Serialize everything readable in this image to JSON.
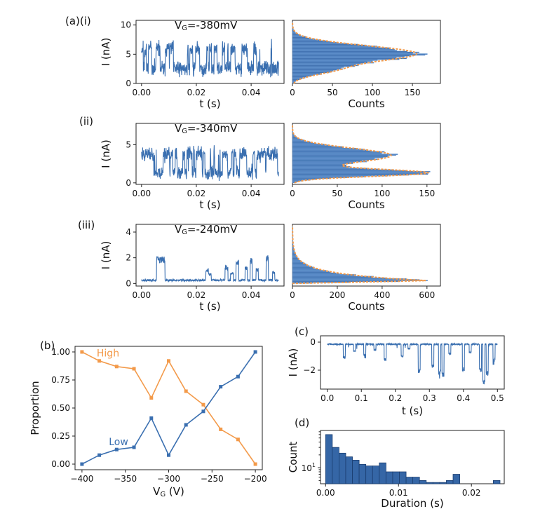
{
  "panel_labels": {
    "a": "(a)(i)",
    "a2": "(ii)",
    "a3": "(iii)",
    "b": "(b)",
    "c": "(c)",
    "d": "(d)"
  },
  "colors": {
    "blue": "#3a6fb0",
    "orange": "#f39a4a",
    "fill": "#3566a6"
  },
  "chart_data": [
    {
      "id": "a_i_trace",
      "type": "line",
      "annotation": {
        "prefix": "V",
        "sub": "G",
        "suffix": "=-380mV"
      },
      "xlabel": "t (s)",
      "ylabel": "I (nA)",
      "xlim": [
        -0.002,
        0.052
      ],
      "ylim": [
        0,
        10.8
      ],
      "xticks": [
        0,
        0.02,
        0.04
      ],
      "xtick_labels": [
        "0.00",
        "0.02",
        "0.04"
      ],
      "yticks": [
        0,
        5,
        10
      ],
      "ytick_labels": [
        "0",
        "5",
        "10"
      ],
      "trace": {
        "mode": "two-level",
        "low": 2.5,
        "high": 6.0,
        "noise": 1.3,
        "seed": 11,
        "min": 0.5,
        "max": 9.8
      }
    },
    {
      "id": "a_i_hist",
      "type": "bar",
      "xlabel": "Counts",
      "xlim": [
        0,
        185
      ],
      "ylim": [
        0,
        10.8
      ],
      "xticks": [
        0,
        50,
        100,
        150
      ],
      "xtick_labels": [
        "0",
        "50",
        "100",
        "150"
      ],
      "profile": {
        "centers": [
          5.1,
          2.3
        ],
        "widths": [
          1.35,
          0.9
        ],
        "amps": [
          155,
          40
        ],
        "top": 10.5
      }
    },
    {
      "id": "a_ii_trace",
      "type": "line",
      "annotation": {
        "prefix": "V",
        "sub": "G",
        "suffix": "=-340mV"
      },
      "xlabel": "t (s)",
      "ylabel": "I (nA)",
      "xlim": [
        -0.002,
        0.052
      ],
      "ylim": [
        -0.2,
        7.8
      ],
      "xticks": [
        0,
        0.02,
        0.04
      ],
      "xtick_labels": [
        "0.00",
        "0.02",
        "0.04"
      ],
      "yticks": [
        0,
        5
      ],
      "ytick_labels": [
        "0",
        "5"
      ],
      "trace": {
        "mode": "two-level",
        "low": 1.3,
        "high": 3.8,
        "noise": 0.9,
        "seed": 23,
        "min": 0.1,
        "max": 6.6
      }
    },
    {
      "id": "a_ii_hist",
      "type": "bar",
      "xlabel": "Counts",
      "xlim": [
        0,
        165
      ],
      "ylim": [
        -0.2,
        7.8
      ],
      "xticks": [
        0,
        50,
        100,
        150
      ],
      "xtick_labels": [
        "0",
        "50",
        "100",
        "150"
      ],
      "profile": {
        "centers": [
          3.6,
          1.3
        ],
        "widths": [
          0.95,
          0.45
        ],
        "amps": [
          110,
          145
        ],
        "top": 7.6
      }
    },
    {
      "id": "a_iii_trace",
      "type": "line",
      "annotation": {
        "prefix": "V",
        "sub": "G",
        "suffix": "=-240mV"
      },
      "xlabel": "t (s)",
      "ylabel": "I (nA)",
      "xlim": [
        -0.002,
        0.052
      ],
      "ylim": [
        -0.2,
        4.6
      ],
      "xticks": [
        0,
        0.02,
        0.04
      ],
      "xtick_labels": [
        "0.00",
        "0.02",
        "0.04"
      ],
      "yticks": [
        0,
        2,
        4
      ],
      "ytick_labels": [
        "0",
        "2",
        "4"
      ],
      "trace": {
        "mode": "spiky",
        "base": 0.25,
        "noise": 0.15,
        "seed": 37,
        "spikes": [
          [
            0.0055,
            0.0085,
            2.1
          ],
          [
            0.0235,
            0.0245,
            1.2
          ],
          [
            0.0245,
            0.0255,
            0.8
          ],
          [
            0.0305,
            0.0315,
            1.4
          ],
          [
            0.0325,
            0.0335,
            0.9
          ],
          [
            0.0345,
            0.0355,
            1.9
          ],
          [
            0.0378,
            0.0386,
            1.4
          ],
          [
            0.0396,
            0.0404,
            2.0
          ],
          [
            0.0418,
            0.0426,
            1.2
          ],
          [
            0.0455,
            0.0463,
            2.2
          ],
          [
            0.0478,
            0.0486,
            1.0
          ]
        ]
      }
    },
    {
      "id": "a_iii_hist",
      "type": "bar",
      "xlabel": "Counts",
      "xlim": [
        0,
        660
      ],
      "ylim": [
        -0.2,
        4.6
      ],
      "xticks": [
        0,
        200,
        400,
        600
      ],
      "xtick_labels": [
        "0",
        "200",
        "400",
        "600"
      ],
      "profile": {
        "mode": "decay",
        "peak": 600,
        "center": 0.22,
        "scale": 0.55,
        "top": 4.5
      }
    },
    {
      "id": "b",
      "type": "line",
      "xlabel": {
        "prefix": "V",
        "sub": "G",
        "suffix": " (V)"
      },
      "ylabel": "Proportion",
      "xlim": [
        -408,
        -192
      ],
      "ylim": [
        -0.05,
        1.05
      ],
      "xticks": [
        -400,
        -350,
        -300,
        -250,
        -200
      ],
      "xtick_labels": [
        "−400",
        "−350",
        "−300",
        "−250",
        "−200"
      ],
      "yticks": [
        0,
        0.25,
        0.5,
        0.75,
        1.0
      ],
      "ytick_labels": [
        "0.00",
        "0.25",
        "0.50",
        "0.75",
        "1.00"
      ],
      "x": [
        -400,
        -380,
        -360,
        -340,
        -320,
        -300,
        -280,
        -260,
        -240,
        -220,
        -200
      ],
      "series": [
        {
          "name": "High",
          "values": [
            1.0,
            0.92,
            0.87,
            0.85,
            0.59,
            0.92,
            0.65,
            0.53,
            0.31,
            0.22,
            0.0
          ]
        },
        {
          "name": "Low",
          "values": [
            0.0,
            0.08,
            0.13,
            0.15,
            0.41,
            0.08,
            0.35,
            0.47,
            0.69,
            0.78,
            1.0
          ]
        }
      ]
    },
    {
      "id": "c",
      "type": "line",
      "xlabel": "t (s)",
      "ylabel": "I (nA)",
      "xlim": [
        -0.02,
        0.52
      ],
      "ylim": [
        -3.35,
        0.45
      ],
      "xticks": [
        0,
        0.1,
        0.2,
        0.3,
        0.4,
        0.5
      ],
      "xtick_labels": [
        "0.0",
        "0.1",
        "0.2",
        "0.3",
        "0.4",
        "0.5"
      ],
      "yticks": [
        0,
        -2
      ],
      "ytick_labels": [
        "0",
        "−2"
      ],
      "trace": {
        "mode": "dips",
        "base": -0.15,
        "noise": 0.08,
        "seed": 5,
        "dips": [
          [
            0.05,
            -1.2
          ],
          [
            0.08,
            -0.7
          ],
          [
            0.11,
            -1.0
          ],
          [
            0.14,
            -0.6
          ],
          [
            0.17,
            -1.3
          ],
          [
            0.22,
            -1.1
          ],
          [
            0.24,
            -0.5
          ],
          [
            0.27,
            -2.2
          ],
          [
            0.31,
            -1.8
          ],
          [
            0.33,
            -2.3
          ],
          [
            0.34,
            -2.5
          ],
          [
            0.36,
            -0.9
          ],
          [
            0.4,
            -2.1
          ],
          [
            0.42,
            -0.8
          ],
          [
            0.45,
            -2.2
          ],
          [
            0.46,
            -3.0
          ],
          [
            0.47,
            -2.4
          ],
          [
            0.49,
            -1.4
          ]
        ]
      }
    },
    {
      "id": "d",
      "type": "bar",
      "yscale": "log",
      "xlabel": "Duration (s)",
      "ylabel": "Count",
      "xlim": [
        -0.0007,
        0.0245
      ],
      "ylim": [
        4.2,
        75
      ],
      "xticks": [
        0,
        0.01,
        0.02
      ],
      "xtick_labels": [
        "0.00",
        "0.01",
        "0.02"
      ],
      "yticks": [
        10
      ],
      "ytick_labels": [
        "10"
      ],
      "bin_width": 0.00092,
      "bin_starts": [
        0,
        0.00092,
        0.00184,
        0.00276,
        0.00368,
        0.0046,
        0.00552,
        0.00644,
        0.00736,
        0.00828,
        0.0092,
        0.01012,
        0.01104,
        0.01196,
        0.01288,
        0.0138,
        0.01472,
        0.01564,
        0.01656,
        0.01748,
        0.0184,
        0.01932,
        0.02024,
        0.02116,
        0.02208,
        0.023
      ],
      "values": [
        60,
        30,
        22,
        18,
        15,
        12,
        11,
        11,
        13,
        8,
        8,
        8,
        6,
        6,
        5,
        4.5,
        4.5,
        4.5,
        5,
        7,
        4.2,
        4.2,
        4.2,
        4.2,
        4.2,
        5
      ]
    }
  ]
}
